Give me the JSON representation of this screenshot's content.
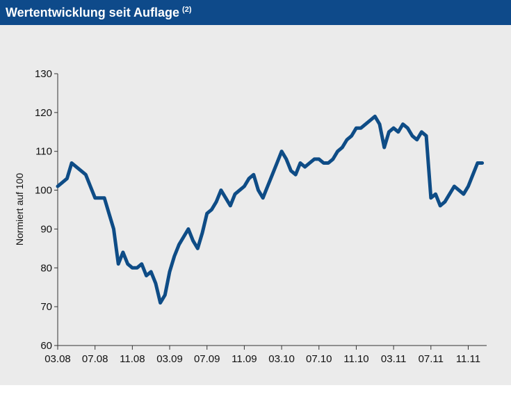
{
  "chart_data": {
    "type": "line",
    "title": "Wertentwicklung seit Auflage",
    "title_note": "(2)",
    "y_label": "Normiert auf 100",
    "categories": [
      "03.08",
      null,
      null,
      null,
      null,
      null,
      null,
      null,
      "07.08",
      null,
      null,
      null,
      null,
      null,
      null,
      null,
      "11.08",
      null,
      null,
      null,
      null,
      null,
      null,
      null,
      "03.09",
      null,
      null,
      null,
      null,
      null,
      null,
      null,
      "07.09",
      null,
      null,
      null,
      null,
      null,
      null,
      null,
      "11.09",
      null,
      null,
      null,
      null,
      null,
      null,
      null,
      "03.10",
      null,
      null,
      null,
      null,
      null,
      null,
      null,
      "07.10",
      null,
      null,
      null,
      null,
      null,
      null,
      null,
      "11.10",
      null,
      null,
      null,
      null,
      null,
      null,
      null,
      "03.11",
      null,
      null,
      null,
      null,
      null,
      null,
      null,
      "07.11",
      null,
      null,
      null,
      null,
      null,
      null,
      null,
      "11.11",
      null,
      null,
      null
    ],
    "series": [
      {
        "name": "Wertentwicklung",
        "color": "#0e4c86",
        "values": [
          101,
          102,
          103,
          107,
          106,
          105,
          104,
          101,
          98,
          98,
          98,
          94,
          90,
          81,
          84,
          81,
          80,
          80,
          81,
          78,
          79,
          76,
          71,
          73,
          79,
          83,
          86,
          88,
          90,
          87,
          85,
          89,
          94,
          95,
          97,
          100,
          98,
          96,
          99,
          100,
          101,
          103,
          104,
          100,
          98,
          101,
          104,
          107,
          110,
          108,
          105,
          104,
          107,
          106,
          107,
          108,
          108,
          107,
          107,
          108,
          110,
          111,
          113,
          114,
          116,
          116,
          117,
          118,
          119,
          117,
          111,
          115,
          116,
          115,
          117,
          116,
          114,
          113,
          115,
          114,
          98,
          99,
          96,
          97,
          99,
          101,
          100,
          99,
          101,
          104,
          107,
          107
        ]
      }
    ],
    "ylim": [
      60,
      130
    ],
    "yticks": [
      60,
      70,
      80,
      90,
      100,
      110,
      120,
      130
    ]
  }
}
